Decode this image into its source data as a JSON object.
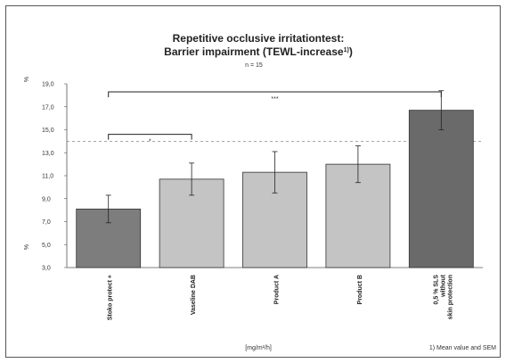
{
  "chart_data": {
    "type": "bar",
    "title_line1": "Repetitive occlusive irritationtest:",
    "title_line2": "Barrier impairment (TEWL-increase",
    "title_sup": "1)",
    "title_close": ")",
    "subtitle": "n = 15",
    "ylabel_top": "%",
    "ylabel_bottom": "%",
    "xlabel": "[mg/m²/h]",
    "footnote": "1) Mean value and SEM",
    "ylim": [
      3.0,
      19.0
    ],
    "yticks": [
      "3,0",
      "5,0",
      "7,0",
      "9,0",
      "11,0",
      "13,0",
      "15,0",
      "17,0",
      "19,0"
    ],
    "reference_line": 14.0,
    "categories": [
      "Stoko protect +",
      "Vaseline DAB",
      "Product A",
      "Product B",
      "0,5 % SLS without skin protection"
    ],
    "values": [
      8.1,
      10.7,
      11.3,
      12.0,
      16.7
    ],
    "errors": [
      1.2,
      1.4,
      1.8,
      1.6,
      1.7
    ],
    "colors": [
      "#7d7d7d",
      "#c4c4c4",
      "#c4c4c4",
      "#c4c4c4",
      "#6a6a6a"
    ],
    "significance": [
      {
        "from": 0,
        "to": 1,
        "label": "*"
      },
      {
        "from": 0,
        "to": 4,
        "label": "***"
      }
    ]
  }
}
